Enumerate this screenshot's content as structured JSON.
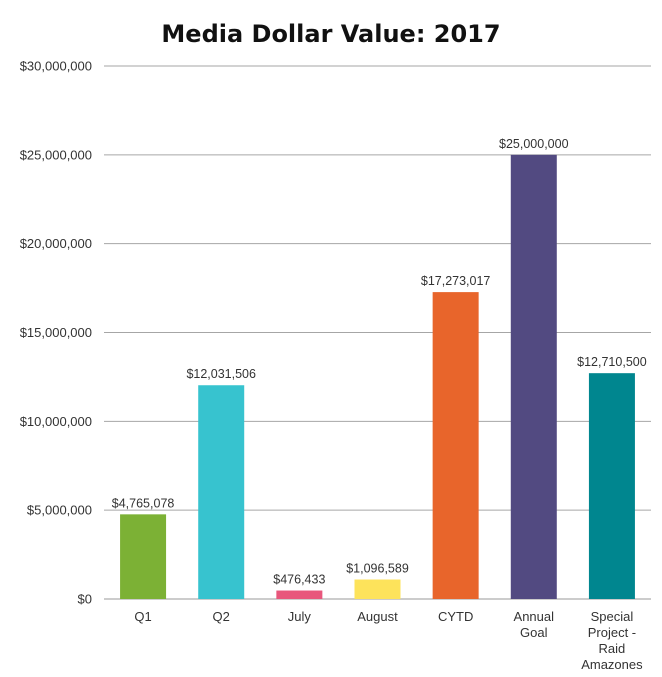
{
  "chart_data": {
    "type": "bar",
    "title": "Media Dollar Value: 2017",
    "xlabel": "",
    "ylabel": "",
    "ylim": [
      0,
      30000000
    ],
    "yticks": [
      0,
      5000000,
      10000000,
      15000000,
      20000000,
      25000000,
      30000000
    ],
    "ytick_labels": [
      "$0",
      "$5,000,000",
      "$10,000,000",
      "$15,000,000",
      "$20,000,000",
      "$25,000,000",
      "$30,000,000"
    ],
    "grid": true,
    "legend": "none",
    "categories": [
      [
        "Q1"
      ],
      [
        "Q2"
      ],
      [
        "July"
      ],
      [
        "August"
      ],
      [
        "CYTD"
      ],
      [
        "Annual",
        "Goal"
      ],
      [
        "Special",
        "Project -",
        "Raid",
        "Amazones"
      ]
    ],
    "values": [
      4765078,
      12031506,
      476433,
      1096589,
      17273017,
      25000000,
      12710500
    ],
    "data_labels": [
      "$4,765,078",
      "$12,031,506",
      "$476,433",
      "$1,096,589",
      "$17,273,017",
      "$25,000,000",
      "$12,710,500"
    ],
    "colors": [
      "#7cb135",
      "#37c3cf",
      "#e8577c",
      "#fde35b",
      "#e8652b",
      "#524a81",
      "#00868f"
    ]
  }
}
